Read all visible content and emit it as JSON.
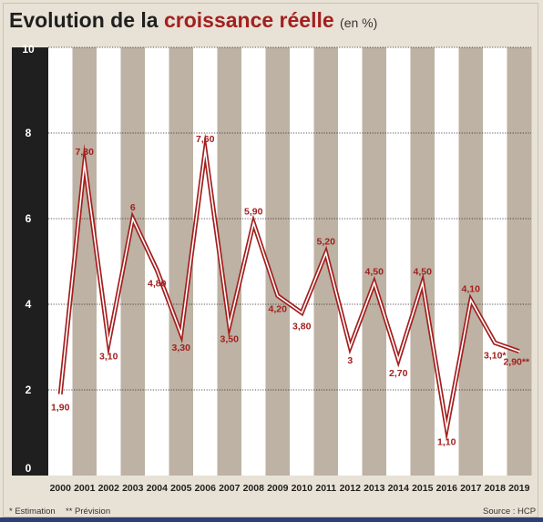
{
  "title": {
    "main": "Evolution de la",
    "accent": "croissance réelle",
    "unit": "(en %)"
  },
  "notes": {
    "estimation": "* Estimation",
    "prevision": "** Prévision",
    "source": "Source : HCP"
  },
  "colors": {
    "line": "#a3201f",
    "band_dark": "#bdb2a3",
    "band_light": "#ffffff",
    "axis_bar": "#1f1f1f"
  },
  "chart_data": {
    "type": "line",
    "x": [
      "2000",
      "2001",
      "2002",
      "2003",
      "2004",
      "2005",
      "2006",
      "2007",
      "2008",
      "2009",
      "2010",
      "2011",
      "2012",
      "2013",
      "2014",
      "2015",
      "2016",
      "2017",
      "2018",
      "2019"
    ],
    "values": [
      1.9,
      7.3,
      3.1,
      6,
      4.8,
      3.3,
      7.6,
      3.5,
      5.9,
      4.2,
      3.8,
      5.2,
      3,
      4.5,
      2.7,
      4.5,
      1.1,
      4.1,
      3.1,
      2.9
    ],
    "labels": [
      "1,90",
      "7,30",
      "3,10",
      "6",
      "4,80",
      "3,30",
      "7,60",
      "3,50",
      "5,90",
      "4,20",
      "3,80",
      "5,20",
      "3",
      "4,50",
      "2,70",
      "4,50",
      "1,10",
      "4,10",
      "3,10*",
      "2,90**"
    ],
    "yticks": [
      0,
      2,
      4,
      6,
      8,
      10
    ],
    "ylim": [
      0,
      10
    ],
    "grid": true
  }
}
